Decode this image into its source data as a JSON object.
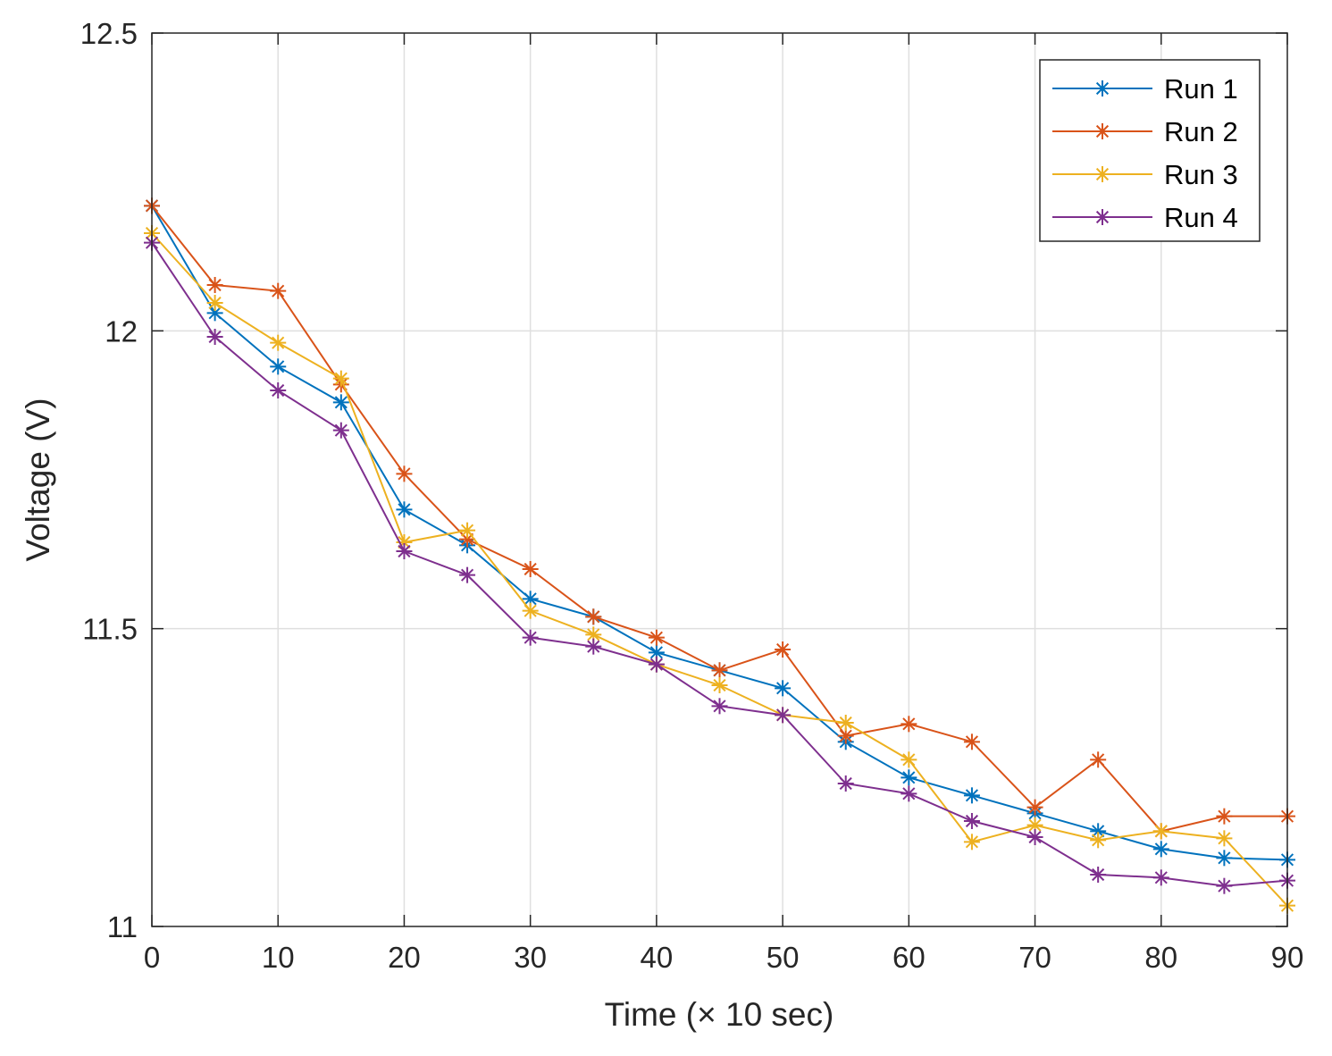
{
  "chart_data": {
    "type": "line",
    "title": "",
    "xlabel": "Time (× 10 sec)",
    "ylabel": "Voltage (V)",
    "xlim": [
      0,
      90
    ],
    "ylim": [
      11,
      12.5
    ],
    "xticks": [
      0,
      10,
      20,
      30,
      40,
      50,
      60,
      70,
      80,
      90
    ],
    "yticks": [
      11,
      11.5,
      12,
      12.5
    ],
    "xtick_labels": [
      "0",
      "10",
      "20",
      "30",
      "40",
      "50",
      "60",
      "70",
      "80",
      "90"
    ],
    "ytick_labels": [
      "11",
      "11.5",
      "12",
      "12.5"
    ],
    "grid": true,
    "legend_position": "top-right",
    "marker": "asterisk",
    "x": [
      0,
      5,
      10,
      15,
      20,
      25,
      30,
      35,
      40,
      45,
      50,
      55,
      60,
      65,
      70,
      75,
      80,
      85,
      90
    ],
    "series": [
      {
        "name": "Run 1",
        "color": "#0072BD",
        "values": [
          12.21,
          12.03,
          11.94,
          11.88,
          11.7,
          11.64,
          11.55,
          11.52,
          11.46,
          11.43,
          11.4,
          11.31,
          11.25,
          11.22,
          11.19,
          11.16,
          11.13,
          11.115,
          11.112
        ]
      },
      {
        "name": "Run 2",
        "color": "#D95319",
        "values": [
          12.21,
          12.077,
          12.067,
          11.91,
          11.76,
          11.65,
          11.6,
          11.52,
          11.485,
          11.43,
          11.465,
          11.32,
          11.34,
          11.31,
          11.2,
          11.28,
          11.16,
          11.185,
          11.185
        ]
      },
      {
        "name": "Run 3",
        "color": "#EDB120",
        "values": [
          12.164,
          12.047,
          11.98,
          11.92,
          11.645,
          11.665,
          11.53,
          11.49,
          11.44,
          11.405,
          11.355,
          11.342,
          11.28,
          11.142,
          11.17,
          11.145,
          11.16,
          11.148,
          11.035
        ]
      },
      {
        "name": "Run 4",
        "color": "#7E2F8E",
        "values": [
          12.148,
          11.99,
          11.9,
          11.833,
          11.63,
          11.59,
          11.485,
          11.47,
          11.44,
          11.37,
          11.355,
          11.24,
          11.223,
          11.177,
          11.15,
          11.087,
          11.082,
          11.068,
          11.077
        ]
      }
    ]
  }
}
